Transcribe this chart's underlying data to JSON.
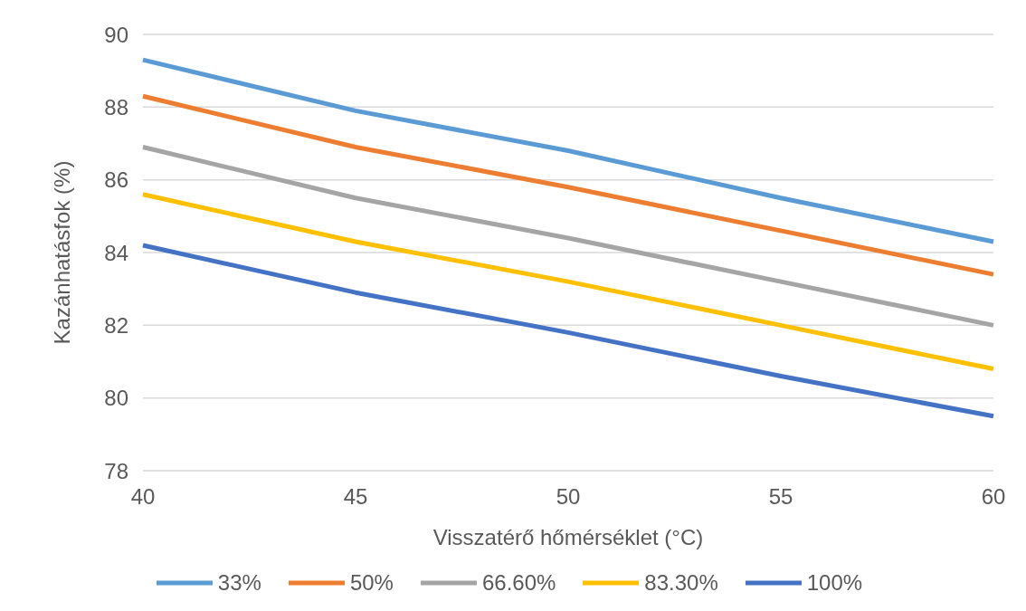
{
  "chart_data": {
    "type": "line",
    "xlabel": "Visszatérő hőmérséklet (°C)",
    "ylabel": "Kazánhatásfok (%)",
    "categories": [
      "40",
      "45",
      "50",
      "55",
      "60"
    ],
    "series": [
      {
        "name": "33%",
        "color": "#5b9bd5",
        "values": [
          89.3,
          87.9,
          86.8,
          85.5,
          84.3
        ]
      },
      {
        "name": "50%",
        "color": "#ed7d31",
        "values": [
          88.3,
          86.9,
          85.8,
          84.6,
          83.4
        ]
      },
      {
        "name": "66.60%",
        "color": "#a5a5a5",
        "values": [
          86.9,
          85.5,
          84.4,
          83.2,
          82.0
        ]
      },
      {
        "name": "83.30%",
        "color": "#ffc000",
        "values": [
          85.6,
          84.3,
          83.2,
          82.0,
          80.8
        ]
      },
      {
        "name": "100%",
        "color": "#4472c4",
        "values": [
          84.2,
          82.9,
          81.8,
          80.6,
          79.5
        ]
      }
    ],
    "ylim": [
      78,
      90
    ],
    "yticks": [
      78,
      80,
      82,
      84,
      86,
      88,
      90
    ],
    "grid": "y",
    "legend": "bottom",
    "marker": "none",
    "line_style": "solid"
  }
}
